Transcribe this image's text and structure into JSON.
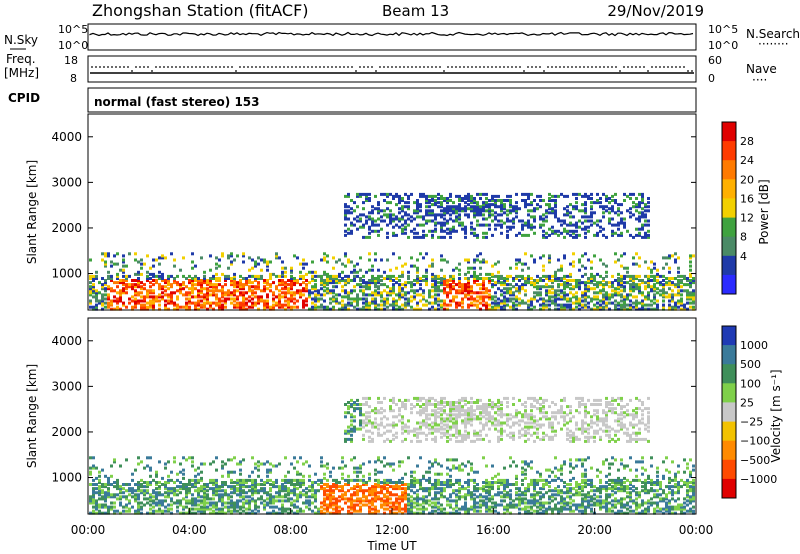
{
  "header": {
    "station_title": "Zhongshan Station (fitACF)",
    "beam": "Beam 13",
    "date": "29/Nov/2019",
    "cpid_label": "CPID",
    "cpid_value": "normal (fast stereo) 153"
  },
  "chart_data": [
    {
      "type": "line",
      "panel": "noise",
      "left_label": "N.Sky",
      "right_label": "N.Search",
      "left_ticks": [
        "10^5",
        "10^0"
      ],
      "right_ticks": [
        "10^5",
        "10^0"
      ],
      "yscale": "log"
    },
    {
      "type": "scatter",
      "panel": "frequency-nave",
      "left_label_1": "Freq.",
      "left_label_2": "[MHz]",
      "right_label": "Nave",
      "left_ticks": [
        "18",
        "8"
      ],
      "right_ticks": [
        "60",
        "0"
      ]
    },
    {
      "type": "heatmap",
      "panel": "power",
      "title": "",
      "xlabel": "",
      "ylabel": "Slant Range [km]",
      "ylim": [
        200,
        4500
      ],
      "y_ticks": [
        1000,
        2000,
        3000,
        4000
      ],
      "colorbar_label": "Power [dB]",
      "colorbar_ticks": [
        "28",
        "24",
        "20",
        "16",
        "12",
        "8",
        "4"
      ],
      "colorbar_colors": [
        "#e00000",
        "#ff3b00",
        "#ff7a00",
        "#ffb000",
        "#f2d000",
        "#3fa23f",
        "#4a8a66",
        "#1f3aa8",
        "#2b2bff"
      ]
    },
    {
      "type": "heatmap",
      "panel": "velocity",
      "title": "",
      "xlabel": "Time UT",
      "ylabel": "Slant Range [km]",
      "ylim": [
        200,
        4500
      ],
      "y_ticks": [
        1000,
        2000,
        3000,
        4000
      ],
      "x_ticks": [
        "00:00",
        "04:00",
        "08:00",
        "12:00",
        "16:00",
        "20:00",
        "00:00"
      ],
      "colorbar_label": "Velocity [m s⁻¹]",
      "colorbar_ticks": [
        "1000",
        "500",
        "100",
        "25",
        "−25",
        "−100",
        "−500",
        "−1000"
      ],
      "colorbar_colors": [
        "#1f3ab4",
        "#3a7a9a",
        "#3f8f5a",
        "#7fd04a",
        "#c8c8c8",
        "#f2c200",
        "#ff8a00",
        "#ff4a00",
        "#e00000"
      ]
    }
  ]
}
